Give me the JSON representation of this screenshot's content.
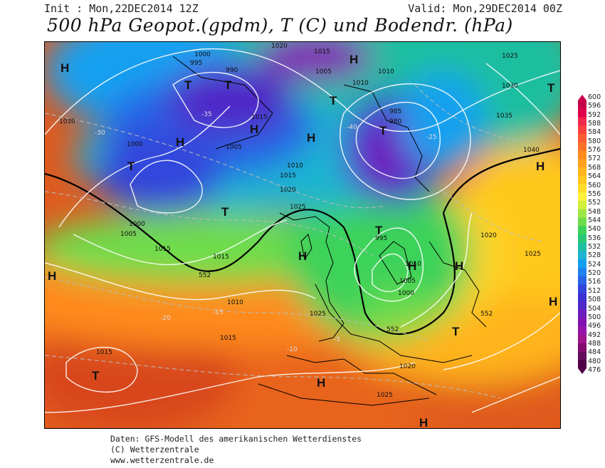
{
  "header": {
    "init": "Init : Mon,22DEC2014 12Z",
    "valid": "Valid: Mon,29DEC2014 00Z",
    "title": "500 hPa Geopot.(gpdm), T (C) und Bodendr. (hPa)"
  },
  "footer": {
    "line1": "Daten: GFS-Modell des amerikanischen Wetterdienstes",
    "line2": "(C) Wetterzentrale",
    "line3": "www.wetterzentrale.de"
  },
  "colorbar": {
    "ticks": [
      "600",
      "596",
      "592",
      "588",
      "584",
      "580",
      "576",
      "572",
      "568",
      "564",
      "560",
      "556",
      "552",
      "548",
      "544",
      "540",
      "536",
      "532",
      "528",
      "524",
      "520",
      "516",
      "512",
      "508",
      "504",
      "500",
      "496",
      "492",
      "488",
      "484",
      "480",
      "476"
    ],
    "colors": [
      "#c8004b",
      "#e0004b",
      "#f0284b",
      "#ff4040",
      "#ff5a32",
      "#ff7028",
      "#ff8a1e",
      "#ffa01e",
      "#ffb41e",
      "#ffc81e",
      "#ffdc28",
      "#fff03c",
      "#d2f03c",
      "#a0e646",
      "#6edc4b",
      "#3cd25a",
      "#28c878",
      "#1ebea0",
      "#1eb4d2",
      "#14a0f0",
      "#1e82f0",
      "#2864e6",
      "#3246dc",
      "#3c32d2",
      "#5028c8",
      "#6e1ebe",
      "#8214b4",
      "#9614aa",
      "#a0148c",
      "#820a6e",
      "#640a5a",
      "#500046"
    ]
  },
  "map": {
    "pressure_labels": [
      {
        "t": "1020"
      },
      {
        "t": "1015"
      },
      {
        "t": "1010"
      },
      {
        "t": "1025"
      },
      {
        "t": "1030"
      },
      {
        "t": "1000"
      },
      {
        "t": "995"
      },
      {
        "t": "990"
      },
      {
        "t": "1005"
      },
      {
        "t": "1010"
      },
      {
        "t": "1015"
      },
      {
        "t": "1035"
      },
      {
        "t": "1040"
      },
      {
        "t": "985"
      },
      {
        "t": "980"
      },
      {
        "t": "1030"
      },
      {
        "t": "1000"
      },
      {
        "t": "1005"
      },
      {
        "t": "1015"
      },
      {
        "t": "1025"
      },
      {
        "t": "1020"
      },
      {
        "t": "1010"
      },
      {
        "t": "1025"
      },
      {
        "t": "1015"
      },
      {
        "t": "1020"
      },
      {
        "t": "1025"
      },
      {
        "t": "1015"
      },
      {
        "t": "1010"
      },
      {
        "t": "1005"
      },
      {
        "t": "1000"
      },
      {
        "t": "995"
      },
      {
        "t": "1010"
      },
      {
        "t": "1000"
      },
      {
        "t": "1005"
      },
      {
        "t": "1015"
      },
      {
        "t": "1020"
      },
      {
        "t": "1025"
      },
      {
        "t": "1015"
      }
    ],
    "temp_labels": [
      "-30",
      "-35",
      "-40",
      "-25",
      "-20",
      "-15",
      "-10",
      "-5"
    ],
    "contour_labels": [
      "552",
      "552",
      "552"
    ],
    "highs": [
      "H",
      "H",
      "H",
      "H",
      "H",
      "H",
      "H",
      "H",
      "H",
      "H",
      "H",
      "H",
      "H"
    ],
    "lows": [
      "T",
      "T",
      "T",
      "T",
      "T",
      "T",
      "T",
      "T",
      "T",
      "T"
    ]
  }
}
